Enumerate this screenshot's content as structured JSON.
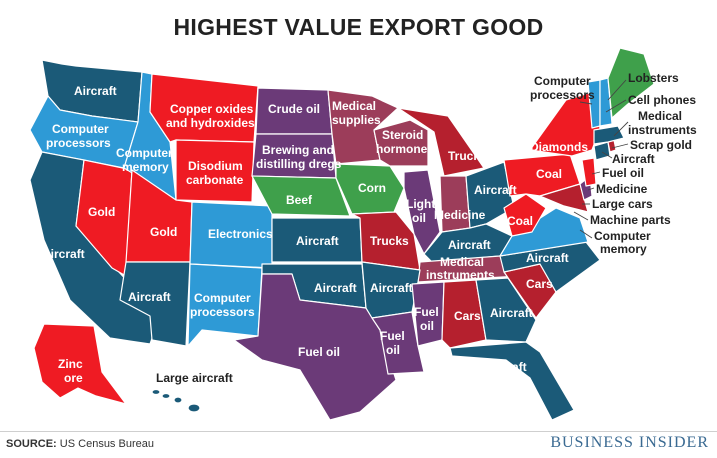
{
  "title": "HIGHEST VALUE EXPORT GOOD",
  "source_label": "SOURCE:",
  "source_text": "US Census Bureau",
  "brand": "BUSINESS INSIDER",
  "colors": {
    "navy": "#1b5a78",
    "light_blue": "#2e9ad6",
    "red": "#ef1b23",
    "dark_red": "#b5202e",
    "mauve": "#9c3d5a",
    "purple": "#6b3a78",
    "green": "#3fa04b"
  },
  "labels": {
    "wa": "Aircraft",
    "or_1": "Computer",
    "or_2": "processors",
    "id_1": "Computer",
    "id_2": "memory",
    "mt_1": "Copper oxides",
    "mt_2": "and hydroxides",
    "nd": "Crude oil",
    "mn_1": "Medical",
    "mn_2": "supplies",
    "sd_1": "Brewing and",
    "sd_2": "distilling dregs",
    "wy_1": "Disodium",
    "wy_2": "carbonate",
    "nv": "Gold",
    "ut": "Gold",
    "co": "Electronics",
    "ne": "Beef",
    "ia": "Corn",
    "wi_1": "Steroid",
    "wi_2": "hormones",
    "mi": "Trucks",
    "ca": "Aircraft",
    "ks": "Aircraft",
    "mo": "Trucks",
    "il_1": "Light",
    "il_2": "oil",
    "in": "Medicine",
    "oh": "Aircraft",
    "ky": "Aircraft",
    "wv": "Coal",
    "pa": "Coal",
    "ny": "Diamonds",
    "az": "Aircraft",
    "nm_1": "Computer",
    "nm_2": "processors",
    "ok": "Aircraft",
    "ar": "Aircraft",
    "tn_1": "Medical",
    "tn_2": "instruments",
    "nc": "Aircraft",
    "sc": "Cars",
    "ms_1": "Fuel",
    "ms_2": "oil",
    "al": "Cars",
    "ga": "Aircraft",
    "la_1": "Fuel",
    "la_2": "oil",
    "tx": "Fuel oil",
    "fl": "Aircraft",
    "ak_1": "Zinc",
    "ak_2": "ore",
    "hi": "Large aircraft",
    "vt_1": "Computer",
    "vt_2": "processors",
    "me": "Lobsters",
    "nh": "Cell phones",
    "ma_1": "Medical",
    "ma_2": "instruments",
    "ri": "Scrap gold",
    "ct": "Aircraft",
    "nj": "Fuel oil",
    "de": "Medicine",
    "md": "Large cars",
    "dc": "Machine parts",
    "va_1": "Computer",
    "va_2": "memory"
  }
}
